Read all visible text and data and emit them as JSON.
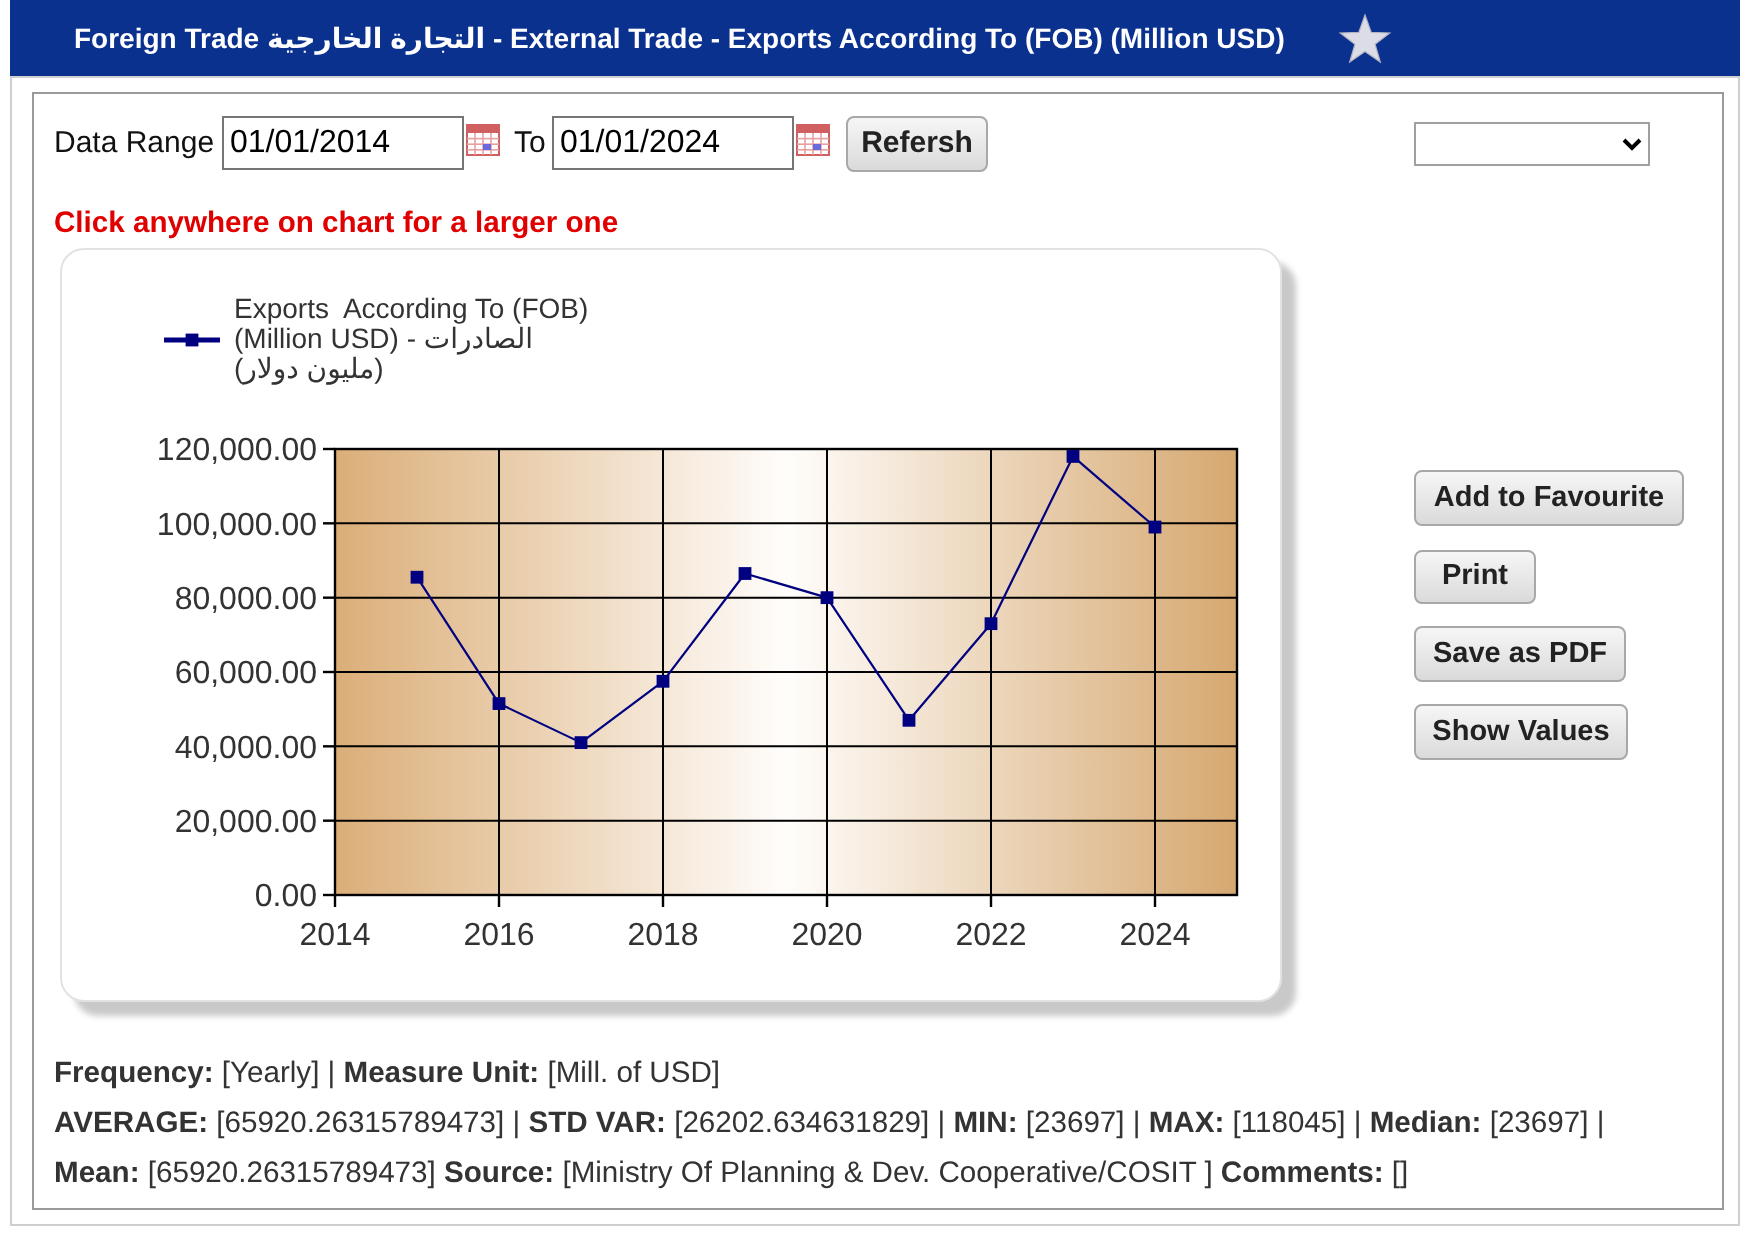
{
  "chart_data": {
    "type": "line",
    "title": "Foreign Trade التجارة الخارجية - External Trade - Exports According To (FOB) (Million USD)",
    "x": [
      2015,
      2016,
      2017,
      2018,
      2019,
      2020,
      2021,
      2022,
      2023,
      2024
    ],
    "series": [
      {
        "name": "Exports  According To (FOB) (Million USD) - الصادرات (مليون دولار)",
        "color": "#000080",
        "values": [
          85500,
          51500,
          41000,
          57500,
          86500,
          80000,
          47000,
          73000,
          118000,
          99000
        ]
      }
    ],
    "xlim": [
      2014,
      2025
    ],
    "xticks": [
      2014,
      2016,
      2018,
      2020,
      2022,
      2024
    ],
    "ylim": [
      0,
      120000
    ],
    "yticks": [
      {
        "value": 0,
        "label": "0.00"
      },
      {
        "value": 20000,
        "label": "20,000.00"
      },
      {
        "value": 40000,
        "label": "40,000.00"
      },
      {
        "value": 60000,
        "label": "60,000.00"
      },
      {
        "value": 80000,
        "label": "80,000.00"
      },
      {
        "value": 100000,
        "label": "100,000.00"
      },
      {
        "value": 120000,
        "label": "120,000.00"
      }
    ],
    "grid": true,
    "legend": "top left",
    "marker": "square",
    "line_style": "solid",
    "annotations": [
      "Data Range",
      "01/01/2014",
      "To",
      "01/01/2024",
      "Refersh",
      "Click anywhere on chart for a larger one",
      "Add to Favourite",
      "Print",
      "Save as PDF",
      "Show Values",
      "**Frequency:** [Yearly] | **Measure Unit:** [Mill. of USD]",
      "**AVERAGE:** [65920.26315789473] | **STD VAR:** [26202.634631829] | **MIN:** [23697] | **MAX:** [118045] | **Median:** [23697] |",
      "**Mean:** [65920.26315789473] **Source:** [Ministry Of Planning & Dev. Cooperative/COSIT ] **Comments:** []"
    ]
  }
}
